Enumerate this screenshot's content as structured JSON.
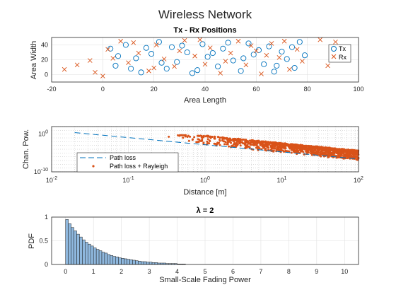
{
  "figure": {
    "suptitle": "Wireless Network"
  },
  "chart_data": [
    {
      "type": "scatter",
      "title": "Tx - Rx Positions",
      "xlabel": "Area Length",
      "ylabel": "Area Width",
      "xlim": [
        -20,
        100
      ],
      "ylim": [
        -10,
        50
      ],
      "xticks": [
        -20,
        0,
        20,
        40,
        60,
        80,
        100
      ],
      "yticks": [
        0,
        20,
        40
      ],
      "grid": true,
      "legend": "right",
      "series": [
        {
          "name": "Tx",
          "marker": "circle",
          "color": "#0072BD",
          "points": [
            [
              3,
              35
            ],
            [
              5,
              12
            ],
            [
              9,
              40
            ],
            [
              13,
              22
            ],
            [
              15,
              3
            ],
            [
              19,
              28
            ],
            [
              22,
              44
            ],
            [
              25,
              8
            ],
            [
              27,
              37
            ],
            [
              29,
              17
            ],
            [
              33,
              30
            ],
            [
              35,
              2
            ],
            [
              39,
              41
            ],
            [
              41,
              24
            ],
            [
              45,
              11
            ],
            [
              47,
              35
            ],
            [
              51,
              19
            ],
            [
              54,
              5
            ],
            [
              57,
              42
            ],
            [
              59,
              27
            ],
            [
              63,
              14
            ],
            [
              65,
              38
            ],
            [
              67,
              4
            ],
            [
              70,
              31
            ],
            [
              72,
              21
            ],
            [
              75,
              9
            ],
            [
              77,
              44
            ],
            [
              79,
              26
            ],
            [
              6,
              25
            ],
            [
              11,
              8
            ],
            [
              17,
              36
            ],
            [
              23,
              16
            ],
            [
              31,
              39
            ],
            [
              37,
              6
            ],
            [
              43,
              29
            ],
            [
              49,
              43
            ],
            [
              55,
              22
            ],
            [
              61,
              33
            ],
            [
              68,
              12
            ],
            [
              74,
              37
            ]
          ]
        },
        {
          "name": "Rx",
          "marker": "x",
          "color": "#D95319",
          "points": [
            [
              -15,
              7
            ],
            [
              -10,
              13
            ],
            [
              -5,
              19
            ],
            [
              -3,
              3
            ],
            [
              0,
              -2
            ],
            [
              2,
              34
            ],
            [
              7,
              45
            ],
            [
              10,
              16
            ],
            [
              14,
              29
            ],
            [
              18,
              5
            ],
            [
              21,
              40
            ],
            [
              24,
              21
            ],
            [
              28,
              11
            ],
            [
              32,
              46
            ],
            [
              36,
              25
            ],
            [
              40,
              14
            ],
            [
              42,
              36
            ],
            [
              46,
              2
            ],
            [
              50,
              29
            ],
            [
              53,
              45
            ],
            [
              56,
              13
            ],
            [
              60,
              32
            ],
            [
              62,
              1
            ],
            [
              66,
              42
            ],
            [
              69,
              23
            ],
            [
              73,
              7
            ],
            [
              76,
              34
            ],
            [
              78,
              18
            ],
            [
              85,
              47
            ],
            [
              88,
              12
            ],
            [
              91,
              44
            ],
            [
              4,
              22
            ],
            [
              12,
              43
            ],
            [
              20,
              9
            ],
            [
              30,
              32
            ],
            [
              38,
              47
            ],
            [
              48,
              18
            ],
            [
              58,
              39
            ],
            [
              64,
              26
            ],
            [
              71,
              45
            ]
          ]
        }
      ]
    },
    {
      "type": "scatter",
      "xlabel": "Distance [m]",
      "ylabel": "Chan. Pow.",
      "xscale": "log",
      "yscale": "log",
      "xlim": [
        0.01,
        100
      ],
      "ylim": [
        1e-10,
        100
      ],
      "xtick_labels": [
        "10^-2",
        "10^-1",
        "10^0",
        "10^1",
        "10^2"
      ],
      "ytick_labels": [
        "10^-10",
        "10^0"
      ],
      "grid": true,
      "legend": "bottom-left",
      "series": [
        {
          "name": "Path loss",
          "style": "dashed-line",
          "color": "#0072BD",
          "x": [
            0.02,
            100
          ],
          "y": [
            2.5,
            2.5e-07
          ]
        },
        {
          "name": "Path loss + Rayleigh",
          "style": "points",
          "color": "#D95319",
          "description": "dense cloud of points, distance 0.3 m to 100 m, power from about 1e-1 down to 1e-9"
        }
      ]
    },
    {
      "type": "bar",
      "title": "λ = 2",
      "xlabel": "Small-Scale Fading Power",
      "ylabel": "PDF",
      "xlim": [
        -0.5,
        10.5
      ],
      "ylim": [
        0,
        1
      ],
      "xticks": [
        0,
        1,
        2,
        3,
        4,
        5,
        6,
        7,
        8,
        9,
        10
      ],
      "yticks": [
        0,
        0.5,
        1
      ],
      "ytick_labels": [
        "0",
        "0.5",
        "1"
      ],
      "grid": true,
      "bin_width": 0.1,
      "bin_start": 0,
      "values": [
        0.95,
        0.86,
        0.78,
        0.71,
        0.64,
        0.58,
        0.52,
        0.47,
        0.43,
        0.39,
        0.35,
        0.32,
        0.29,
        0.26,
        0.24,
        0.21,
        0.19,
        0.17,
        0.16,
        0.14,
        0.13,
        0.12,
        0.11,
        0.1,
        0.09,
        0.08,
        0.07,
        0.06,
        0.06,
        0.05,
        0.05,
        0.04,
        0.04,
        0.03,
        0.03,
        0.03,
        0.02,
        0.02,
        0.02,
        0.02,
        0.01,
        0.01,
        0.01
      ]
    }
  ]
}
